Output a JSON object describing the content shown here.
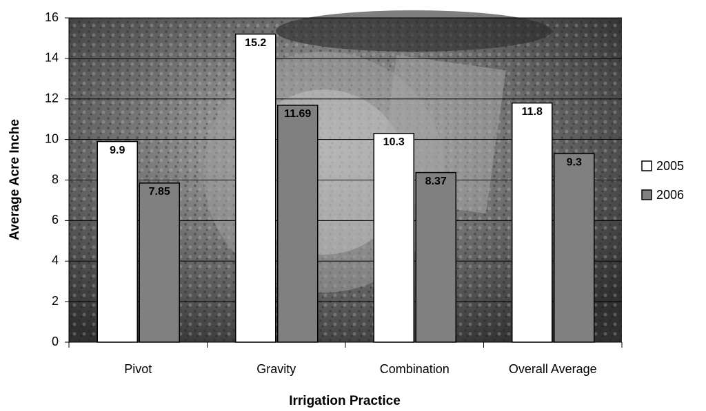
{
  "chart_data": {
    "type": "bar",
    "x_label": "Irrigation Practice",
    "y_label": "Average Acre Inche",
    "categories": [
      "Pivot",
      "Gravity",
      "Combination",
      "Overall Average"
    ],
    "series": [
      {
        "name": "2005",
        "color": "#ffffff",
        "values": [
          9.9,
          15.2,
          10.3,
          11.8
        ]
      },
      {
        "name": "2006",
        "color": "#808080",
        "values": [
          7.85,
          11.69,
          8.37,
          9.3
        ]
      }
    ],
    "ylim": [
      0,
      16
    ],
    "yticks": [
      0,
      2,
      4,
      6,
      8,
      10,
      12,
      14,
      16
    ],
    "grid": true,
    "legend": "right"
  }
}
